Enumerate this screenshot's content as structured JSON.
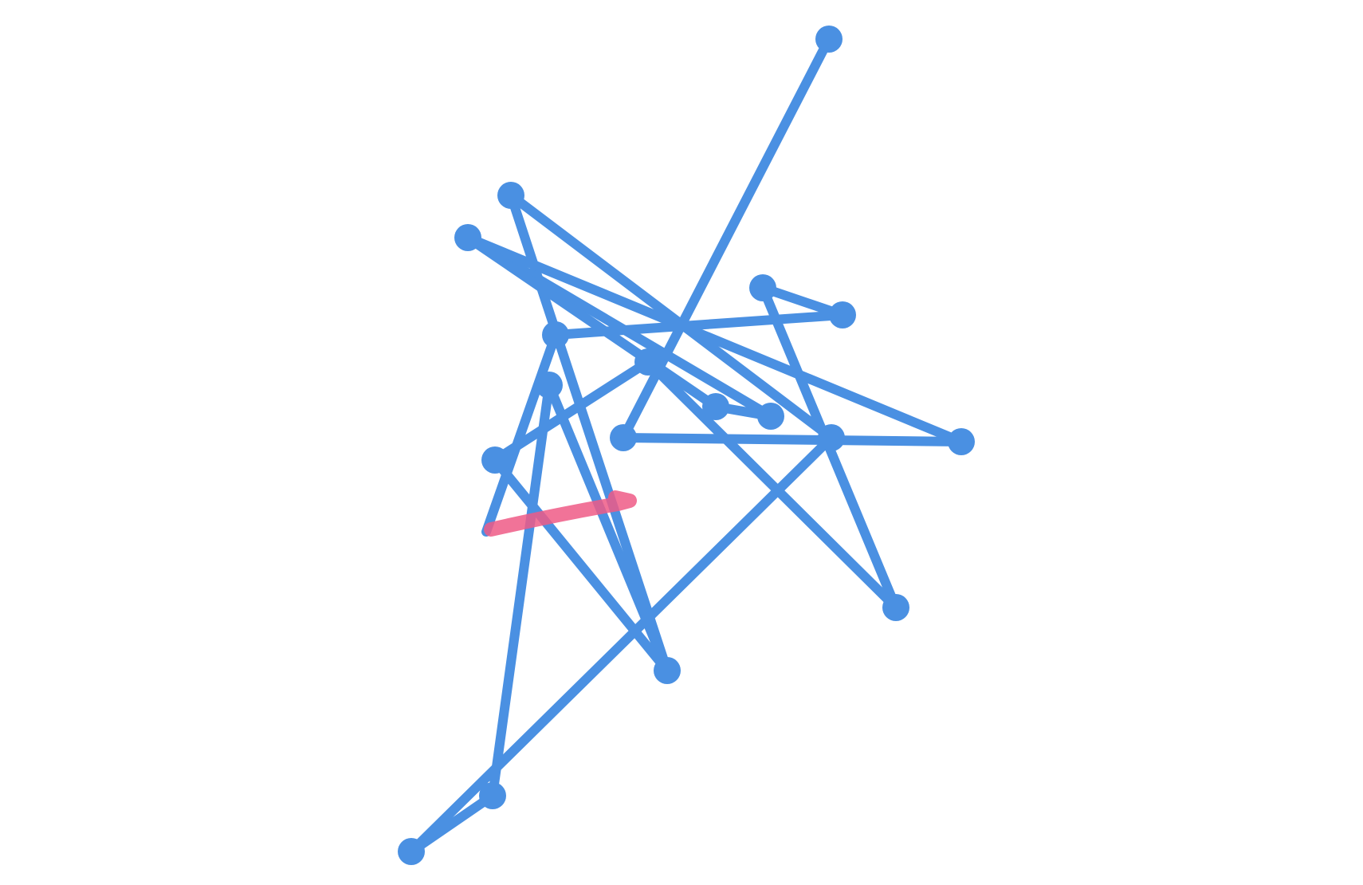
{
  "colors": {
    "background": "#ffffff",
    "graph": "#4a90e2",
    "slice": "#ee5a86"
  },
  "graph": {
    "nodes": [
      {
        "id": "n1"
      },
      {
        "id": "n2"
      },
      {
        "id": "n3"
      },
      {
        "id": "n4"
      },
      {
        "id": "n5"
      },
      {
        "id": "n6"
      },
      {
        "id": "n7"
      },
      {
        "id": "n8"
      },
      {
        "id": "n9"
      },
      {
        "id": "n10"
      },
      {
        "id": "n11"
      },
      {
        "id": "n12"
      },
      {
        "id": "n13"
      },
      {
        "id": "n14"
      },
      {
        "id": "n15"
      },
      {
        "id": "n16"
      },
      {
        "id": "n17"
      },
      {
        "id": "n18"
      }
    ],
    "edges": [
      [
        "n1",
        "n10"
      ],
      [
        "n2",
        "n13"
      ],
      [
        "n2",
        "n15"
      ],
      [
        "n3",
        "n11"
      ],
      [
        "n3",
        "n12"
      ],
      [
        "n3",
        "n15"
      ],
      [
        "n4",
        "n6"
      ],
      [
        "n4",
        "n16"
      ],
      [
        "n5",
        "n6"
      ],
      [
        "n5",
        "n17"
      ],
      [
        "n7",
        "n13"
      ],
      [
        "n7",
        "n17"
      ],
      [
        "n8",
        "n11"
      ],
      [
        "n8",
        "n14"
      ],
      [
        "n9",
        "n10"
      ],
      [
        "n9",
        "n15"
      ],
      [
        "n12",
        "n16"
      ],
      [
        "n14",
        "n18"
      ],
      [
        "n18",
        "n13"
      ]
    ]
  }
}
